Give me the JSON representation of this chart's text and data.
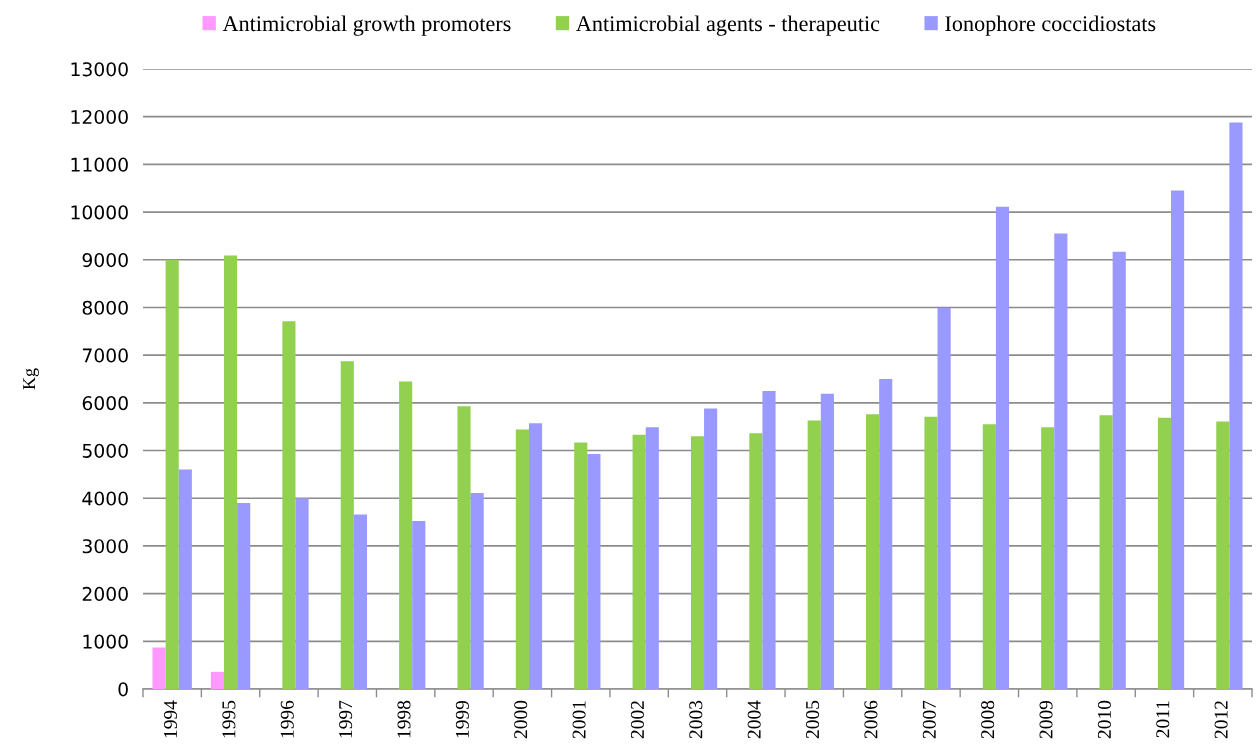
{
  "chart_data": {
    "type": "bar",
    "ylabel": "Kg",
    "categories": [
      "1994",
      "1995",
      "1996",
      "1997",
      "1998",
      "1999",
      "2000",
      "2001",
      "2002",
      "2003",
      "2004",
      "2005",
      "2006",
      "2007",
      "2008",
      "2009",
      "2010",
      "2011",
      "2012"
    ],
    "series": [
      {
        "name": "Antimicrobial growth promoters",
        "color": "#ff99ff",
        "values": [
          870,
          360,
          null,
          null,
          null,
          null,
          null,
          null,
          null,
          null,
          null,
          null,
          null,
          null,
          null,
          null,
          null,
          null,
          null
        ]
      },
      {
        "name": "Antimicrobial agents - therapeutic",
        "color": "#92d050",
        "values": [
          9000,
          9090,
          7710,
          6870,
          6450,
          5930,
          5440,
          5170,
          5330,
          5300,
          5360,
          5630,
          5760,
          5710,
          5550,
          5490,
          5740,
          5690,
          5610
        ]
      },
      {
        "name": "Ionophore coccidiostats",
        "color": "#9999ff",
        "values": [
          4600,
          3900,
          4000,
          3660,
          3520,
          4110,
          5570,
          4930,
          5490,
          5880,
          6250,
          6190,
          6500,
          7990,
          10110,
          9550,
          9170,
          10450,
          11880
        ]
      }
    ],
    "ylim": [
      0,
      13000
    ],
    "yticks": [
      0,
      1000,
      2000,
      3000,
      4000,
      5000,
      6000,
      7000,
      8000,
      9000,
      10000,
      11000,
      12000,
      13000
    ],
    "grid": "y",
    "legend": "top"
  }
}
